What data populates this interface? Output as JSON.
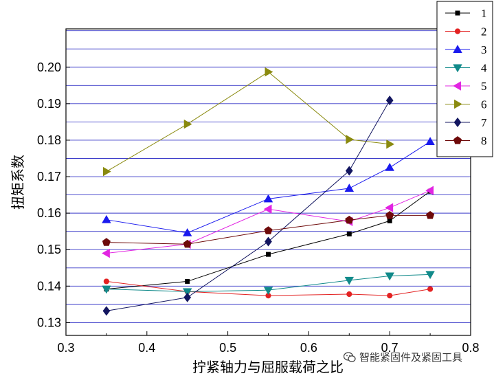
{
  "chart_data": {
    "type": "line",
    "xlabel": "拧紧轴力与屈服载荷之比",
    "ylabel": "扭矩系数",
    "xlim": [
      0.3,
      0.8
    ],
    "ylim": [
      0.1265,
      0.2105
    ],
    "x_ticks": [
      "0.3",
      "0.4",
      "0.5",
      "0.6",
      "0.7",
      "0.8"
    ],
    "y_ticks": [
      "0.13",
      "0.14",
      "0.15",
      "0.16",
      "0.17",
      "0.18",
      "0.19",
      "0.20"
    ],
    "grid": "horizontal",
    "legend_position": "top-right",
    "series": [
      {
        "name": "1",
        "color": "#000000",
        "marker": "square",
        "x": [
          0.35,
          0.45,
          0.55,
          0.65,
          0.7,
          0.75
        ],
        "y": [
          0.1392,
          0.1413,
          0.1487,
          0.1543,
          0.1579,
          0.166
        ]
      },
      {
        "name": "2",
        "color": "#e32222",
        "marker": "circle",
        "x": [
          0.35,
          0.45,
          0.55,
          0.65,
          0.7,
          0.75
        ],
        "y": [
          0.1413,
          0.1385,
          0.1374,
          0.1378,
          0.1374,
          0.1392
        ]
      },
      {
        "name": "3",
        "color": "#1a1aee",
        "marker": "triangle-up",
        "x": [
          0.35,
          0.45,
          0.55,
          0.65,
          0.7,
          0.75
        ],
        "y": [
          0.1582,
          0.1546,
          0.1639,
          0.1668,
          0.1725,
          0.1796
        ]
      },
      {
        "name": "4",
        "color": "#118a8a",
        "marker": "triangle-down",
        "x": [
          0.35,
          0.45,
          0.55,
          0.65,
          0.7,
          0.75
        ],
        "y": [
          0.1392,
          0.1385,
          0.1389,
          0.1416,
          0.1428,
          0.1432
        ]
      },
      {
        "name": "5",
        "color": "#e224e2",
        "marker": "triangle-left",
        "x": [
          0.35,
          0.45,
          0.55,
          0.65,
          0.7,
          0.75
        ],
        "y": [
          0.149,
          0.1515,
          0.1611,
          0.1577,
          0.1615,
          0.1662
        ]
      },
      {
        "name": "6",
        "color": "#8a8a0f",
        "marker": "triangle-right",
        "x": [
          0.35,
          0.45,
          0.55,
          0.65,
          0.7
        ],
        "y": [
          0.1714,
          0.1844,
          0.1987,
          0.1802,
          0.1789
        ]
      },
      {
        "name": "7",
        "color": "#131660",
        "marker": "diamond",
        "x": [
          0.35,
          0.45,
          0.55,
          0.65,
          0.7
        ],
        "y": [
          0.1332,
          0.1369,
          0.1522,
          0.1716,
          0.1909
        ]
      },
      {
        "name": "8",
        "color": "#6e0a0a",
        "marker": "pentagon",
        "x": [
          0.35,
          0.45,
          0.55,
          0.65,
          0.7,
          0.75
        ],
        "y": [
          0.152,
          0.1515,
          0.1552,
          0.1581,
          0.1594,
          0.1594
        ]
      }
    ]
  },
  "watermark": {
    "text": "智能紧固件及紧固工具",
    "icon": "wechat-icon"
  }
}
